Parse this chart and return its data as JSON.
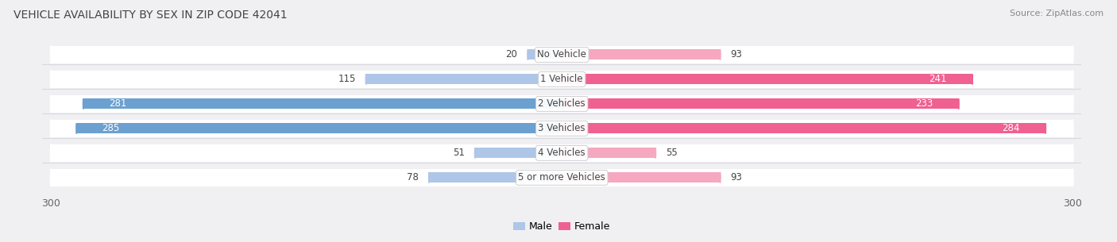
{
  "title": "VEHICLE AVAILABILITY BY SEX IN ZIP CODE 42041",
  "source": "Source: ZipAtlas.com",
  "categories": [
    "No Vehicle",
    "1 Vehicle",
    "2 Vehicles",
    "3 Vehicles",
    "4 Vehicles",
    "5 or more Vehicles"
  ],
  "male_values": [
    20,
    115,
    281,
    285,
    51,
    78
  ],
  "female_values": [
    93,
    241,
    233,
    284,
    55,
    93
  ],
  "male_color_light": "#aec6e8",
  "male_color_dark": "#6ca0d0",
  "female_color_light": "#f5a8bf",
  "female_color_dark": "#f06090",
  "background_color": "#f0f0f2",
  "row_bg_color": "#ffffff",
  "sep_color": "#d8d8e0",
  "xlim": 300,
  "title_fontsize": 10,
  "label_fontsize": 8.5,
  "val_fontsize": 8.5,
  "legend_fontsize": 9,
  "source_fontsize": 8
}
